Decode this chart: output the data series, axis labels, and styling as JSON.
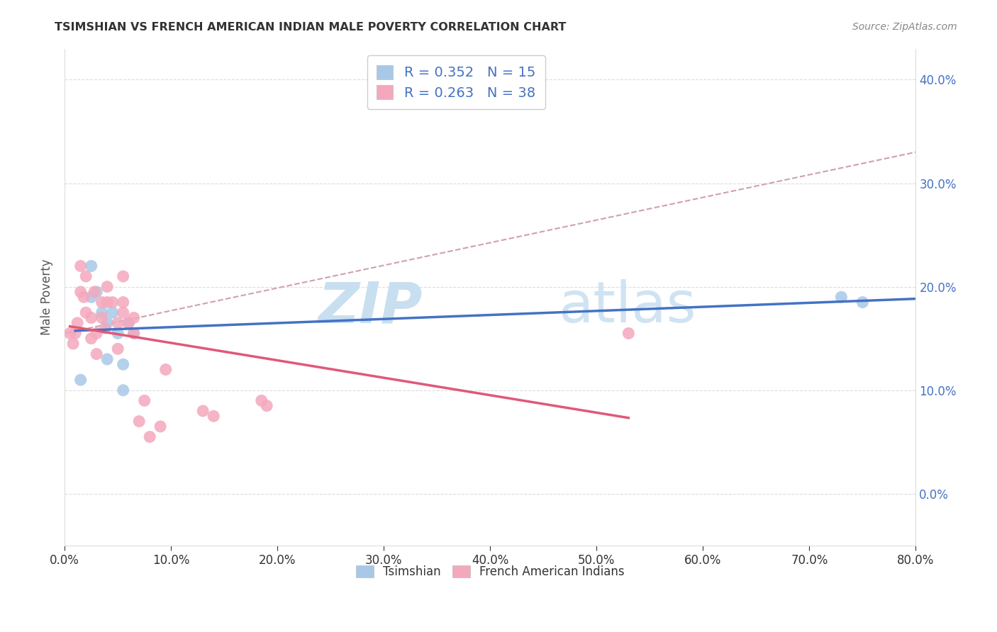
{
  "title": "TSIMSHIAN VS FRENCH AMERICAN INDIAN MALE POVERTY CORRELATION CHART",
  "source": "Source: ZipAtlas.com",
  "ylabel": "Male Poverty",
  "xlim": [
    0.0,
    0.8
  ],
  "ylim": [
    -0.05,
    0.43
  ],
  "yticks": [
    0.0,
    0.1,
    0.2,
    0.3,
    0.4
  ],
  "xticks": [
    0.0,
    0.1,
    0.2,
    0.3,
    0.4,
    0.5,
    0.6,
    0.7,
    0.8
  ],
  "tsimshian_color": "#a8c8e8",
  "french_color": "#f4a8bc",
  "tsimshian_line_color": "#4472c4",
  "french_line_color": "#e05878",
  "trend_line_color": "#d0a0b0",
  "R_tsimshian": 0.352,
  "N_tsimshian": 15,
  "R_french": 0.263,
  "N_french": 38,
  "tsimshian_x": [
    0.015,
    0.025,
    0.025,
    0.03,
    0.035,
    0.04,
    0.04,
    0.045,
    0.05,
    0.055,
    0.055,
    0.06,
    0.065,
    0.73,
    0.75
  ],
  "tsimshian_y": [
    0.11,
    0.22,
    0.19,
    0.195,
    0.175,
    0.165,
    0.13,
    0.175,
    0.155,
    0.1,
    0.125,
    0.165,
    0.155,
    0.19,
    0.185
  ],
  "french_x": [
    0.005,
    0.008,
    0.01,
    0.012,
    0.015,
    0.015,
    0.018,
    0.02,
    0.02,
    0.025,
    0.025,
    0.028,
    0.03,
    0.03,
    0.035,
    0.035,
    0.038,
    0.04,
    0.04,
    0.045,
    0.05,
    0.05,
    0.055,
    0.055,
    0.055,
    0.06,
    0.065,
    0.065,
    0.07,
    0.075,
    0.08,
    0.09,
    0.095,
    0.13,
    0.14,
    0.185,
    0.19,
    0.53
  ],
  "french_y": [
    0.155,
    0.145,
    0.155,
    0.165,
    0.195,
    0.22,
    0.19,
    0.21,
    0.175,
    0.17,
    0.15,
    0.195,
    0.135,
    0.155,
    0.185,
    0.17,
    0.16,
    0.185,
    0.2,
    0.185,
    0.14,
    0.165,
    0.185,
    0.175,
    0.21,
    0.165,
    0.17,
    0.155,
    0.07,
    0.09,
    0.055,
    0.065,
    0.12,
    0.08,
    0.075,
    0.09,
    0.085,
    0.155
  ],
  "background_color": "#ffffff",
  "watermark_zip": "ZIP",
  "watermark_atlas": "atlas",
  "watermark_color": "#c8dff0"
}
